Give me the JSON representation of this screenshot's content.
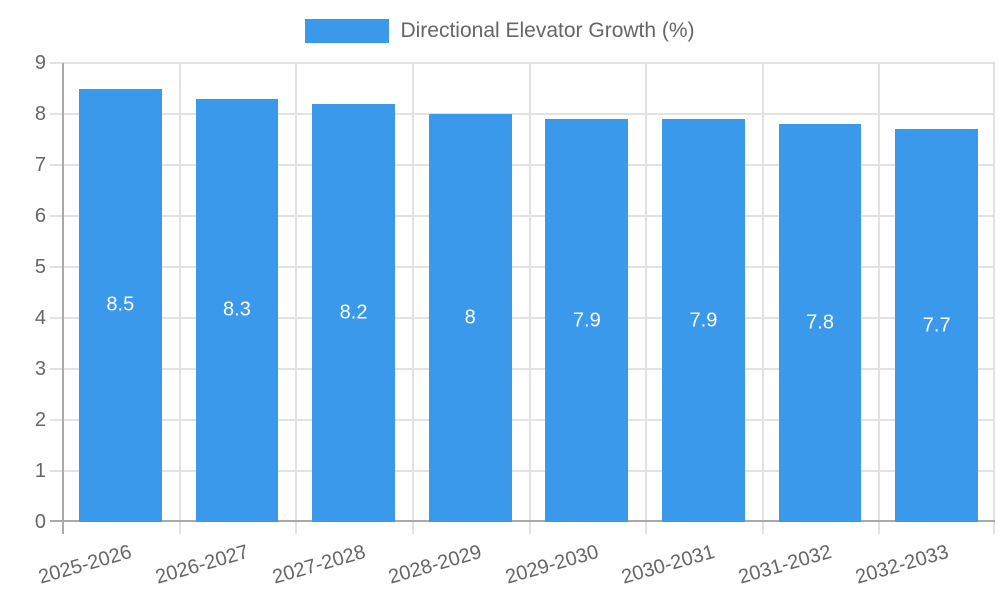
{
  "chart": {
    "legend_label": "Directional Elevator Growth (%)"
  },
  "chart_data": {
    "type": "bar",
    "title": "",
    "categories": [
      "2025-2026",
      "2026-2027",
      "2027-2028",
      "2028-2029",
      "2029-2030",
      "2030-2031",
      "2031-2032",
      "2032-2033"
    ],
    "series": [
      {
        "name": "Directional Elevator Growth (%)",
        "values": [
          8.5,
          8.3,
          8.2,
          8,
          7.9,
          7.9,
          7.8,
          7.7
        ]
      }
    ],
    "value_labels": [
      "8.5",
      "8.3",
      "8.2",
      "8",
      "7.9",
      "7.9",
      "7.8",
      "7.7"
    ],
    "xlabel": "",
    "ylabel": "",
    "ylim": [
      0,
      9
    ],
    "y_ticks": [
      0,
      1,
      2,
      3,
      4,
      5,
      6,
      7,
      8,
      9
    ],
    "grid": true,
    "legend_position": "top",
    "colors": {
      "bar": "#3B99EC",
      "grid": "#e2e2e2",
      "axis": "#a9a9a9",
      "tick_label": "#666666",
      "value_label": "#ffffff",
      "legend_text": "#666666",
      "background": "#ffffff"
    }
  }
}
